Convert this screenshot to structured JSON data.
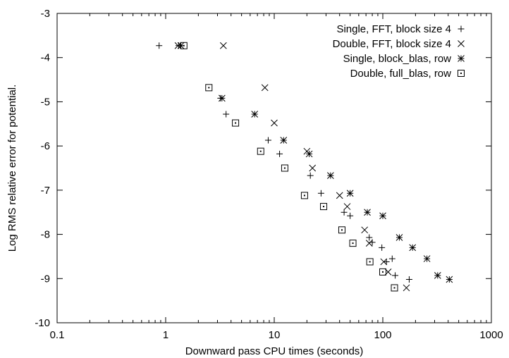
{
  "chart_data": {
    "type": "scatter",
    "title": "",
    "xlabel": "Downward pass CPU times (seconds)",
    "ylabel": "Log RMS relative error for potential.",
    "xscale": "log",
    "xlim": [
      0.1,
      1000
    ],
    "ylim": [
      -10,
      -3
    ],
    "xticks": [
      0.1,
      1,
      10,
      100,
      1000
    ],
    "xtick_labels": [
      "0.1",
      "1",
      "10",
      "100",
      "1000"
    ],
    "yticks": [
      -10,
      -9,
      -8,
      -7,
      -6,
      -5,
      -4,
      -3
    ],
    "ytick_labels": [
      "-10",
      "-9",
      "-8",
      "-7",
      "-6",
      "-5",
      "-4",
      "-3"
    ],
    "grid": false,
    "legend_position": "top-right",
    "series": [
      {
        "name": "Single, FFT, block size 4",
        "marker": "plus",
        "x": [
          0.87,
          1.32,
          3.2,
          3.6,
          8.8,
          11.2,
          21.5,
          27,
          44,
          50,
          75,
          80,
          98,
          108,
          122,
          130,
          175
        ],
        "y": [
          -3.73,
          -3.73,
          -4.92,
          -5.28,
          -5.87,
          -6.18,
          -6.67,
          -7.07,
          -7.5,
          -7.58,
          -8.07,
          -8.18,
          -8.3,
          -8.62,
          -8.55,
          -8.93,
          -9.02
        ]
      },
      {
        "name": "Double, FFT, block size 4",
        "marker": "x",
        "x": [
          1.3,
          3.4,
          8.2,
          10,
          20,
          22.5,
          40,
          47,
          68,
          75,
          102,
          112,
          165
        ],
        "y": [
          -3.73,
          -3.73,
          -4.68,
          -5.48,
          -6.12,
          -6.5,
          -7.12,
          -7.37,
          -7.9,
          -8.2,
          -8.62,
          -8.85,
          -9.21
        ]
      },
      {
        "name": "Single, block_blas, row",
        "marker": "asterisk",
        "x": [
          1.38,
          3.3,
          6.6,
          12.2,
          21,
          33,
          50,
          72,
          100,
          142,
          188,
          255,
          320,
          410
        ],
        "y": [
          -3.73,
          -4.92,
          -5.28,
          -5.87,
          -6.18,
          -6.67,
          -7.07,
          -7.5,
          -7.58,
          -8.07,
          -8.3,
          -8.55,
          -8.93,
          -9.02
        ]
      },
      {
        "name": "Double, full_blas, row",
        "marker": "square-dot",
        "x": [
          1.47,
          2.5,
          4.4,
          7.5,
          12.5,
          19,
          28.5,
          42,
          53,
          76,
          100,
          128
        ],
        "y": [
          -3.73,
          -4.68,
          -5.48,
          -6.12,
          -6.5,
          -7.12,
          -7.37,
          -7.9,
          -8.2,
          -8.62,
          -8.85,
          -9.21
        ]
      }
    ]
  }
}
